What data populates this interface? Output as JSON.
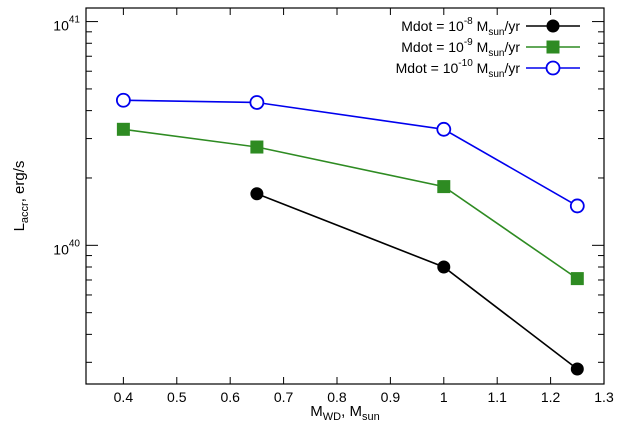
{
  "chart_data": {
    "type": "line",
    "title": "",
    "xlabel": {
      "base": "M",
      "sub": "WD",
      "mid": ", M",
      "sub2": "sun"
    },
    "ylabel": {
      "base": "L",
      "sub": "accr",
      "rest": ", erg/s"
    },
    "xlim": [
      0.33,
      1.3
    ],
    "ylim": [
      2.4e+39,
      1.15e+41
    ],
    "yscale": "log",
    "grid": false,
    "legend_position": "top-right",
    "x_ticks": [
      {
        "v": 0.4,
        "label": "0.4"
      },
      {
        "v": 0.5,
        "label": "0.5"
      },
      {
        "v": 0.6,
        "label": "0.6"
      },
      {
        "v": 0.7,
        "label": "0.7"
      },
      {
        "v": 0.8,
        "label": "0.8"
      },
      {
        "v": 0.9,
        "label": "0.9"
      },
      {
        "v": 1.0,
        "label": "1"
      },
      {
        "v": 1.1,
        "label": "1.1"
      },
      {
        "v": 1.2,
        "label": "1.2"
      },
      {
        "v": 1.3,
        "label": "1.3"
      }
    ],
    "y_major_ticks": [
      {
        "v": 1e+40,
        "base": "10",
        "exp": "40"
      },
      {
        "v": 1e+41,
        "base": "10",
        "exp": "41"
      }
    ],
    "series": [
      {
        "legend": {
          "prefix": "Mdot = 10",
          "exp": "-8",
          "mid": " M",
          "sub": "sun",
          "suffix": "/yr"
        },
        "color": "#000000",
        "marker": "filled-circle",
        "x": [
          0.65,
          1.0,
          1.25
        ],
        "y": [
          1.7e+40,
          8e+39,
          2.8e+39
        ]
      },
      {
        "legend": {
          "prefix": "Mdot = 10",
          "exp": "-9",
          "mid": " M",
          "sub": "sun",
          "suffix": "/yr"
        },
        "color": "#2e8b22",
        "marker": "filled-square",
        "x": [
          0.4,
          0.65,
          1.0,
          1.25
        ],
        "y": [
          3.3e+40,
          2.75e+40,
          1.83e+40,
          7.1e+39
        ]
      },
      {
        "legend": {
          "prefix": "Mdot = 10",
          "exp": "-10",
          "mid": " M",
          "sub": "sun",
          "suffix": "/yr"
        },
        "color": "#0000ee",
        "marker": "open-circle",
        "x": [
          0.4,
          0.65,
          1.0,
          1.25
        ],
        "y": [
          4.45e+40,
          4.35e+40,
          3.3e+40,
          1.5e+40
        ]
      }
    ]
  }
}
